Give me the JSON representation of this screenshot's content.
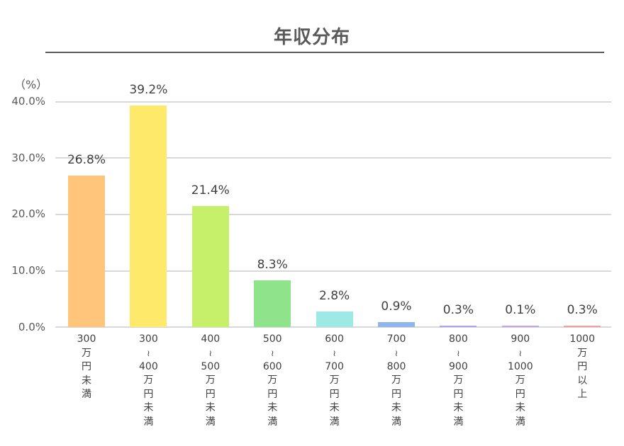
{
  "chart_data": {
    "type": "bar",
    "title": "年収分布",
    "xlabel": "",
    "ylabel": "（%）",
    "ylim": [
      0,
      40
    ],
    "yticks": [
      "0.0%",
      "10.0%",
      "20.0%",
      "30.0%",
      "40.0%"
    ],
    "grid": true,
    "legend": null,
    "categories": [
      "300万円未満",
      "300～400万円未満",
      "400～500万円未満",
      "500～600万円未満",
      "600～700万円未満",
      "700～800万円未満",
      "800～900万円未満",
      "900～1000万円未満",
      "1000万円以上"
    ],
    "values": [
      26.8,
      39.2,
      21.4,
      8.3,
      2.8,
      0.9,
      0.3,
      0.1,
      0.3
    ],
    "data_labels": [
      "26.8%",
      "39.2%",
      "21.4%",
      "8.3%",
      "2.8%",
      "0.9%",
      "0.3%",
      "0.1%",
      "0.3%"
    ],
    "colors": [
      "#FFC57A",
      "#FFE96A",
      "#C6F06A",
      "#8FE38A",
      "#9CE9E6",
      "#8FB6EC",
      "#A9A2EC",
      "#C9A2E6",
      "#F0A0A0"
    ]
  },
  "header": {
    "title": "年収分布"
  },
  "axis": {
    "unit": "（%）",
    "yticks": [
      {
        "label": "40.0%"
      },
      {
        "label": "30.0%"
      },
      {
        "label": "20.0%"
      },
      {
        "label": "10.0%"
      },
      {
        "label": "0.0%"
      }
    ]
  },
  "bars": [
    {
      "label_lines": [
        "300",
        "万",
        "円",
        "未",
        "満"
      ],
      "value_label": "26.8%"
    },
    {
      "label_lines": [
        "300",
        "∫",
        "400",
        "万",
        "円",
        "未",
        "満"
      ],
      "value_label": "39.2%"
    },
    {
      "label_lines": [
        "400",
        "∫",
        "500",
        "万",
        "円",
        "未",
        "満"
      ],
      "value_label": "21.4%"
    },
    {
      "label_lines": [
        "500",
        "∫",
        "600",
        "万",
        "円",
        "未",
        "満"
      ],
      "value_label": "8.3%"
    },
    {
      "label_lines": [
        "600",
        "∫",
        "700",
        "万",
        "円",
        "未",
        "満"
      ],
      "value_label": "2.8%"
    },
    {
      "label_lines": [
        "700",
        "∫",
        "800",
        "万",
        "円",
        "未",
        "満"
      ],
      "value_label": "0.9%"
    },
    {
      "label_lines": [
        "800",
        "∫",
        "900",
        "万",
        "円",
        "未",
        "満"
      ],
      "value_label": "0.3%"
    },
    {
      "label_lines": [
        "900",
        "∫",
        "1000",
        "万",
        "円",
        "未",
        "満"
      ],
      "value_label": "0.1%"
    },
    {
      "label_lines": [
        "1000",
        "万",
        "円",
        "以",
        "上"
      ],
      "value_label": "0.3%"
    }
  ]
}
